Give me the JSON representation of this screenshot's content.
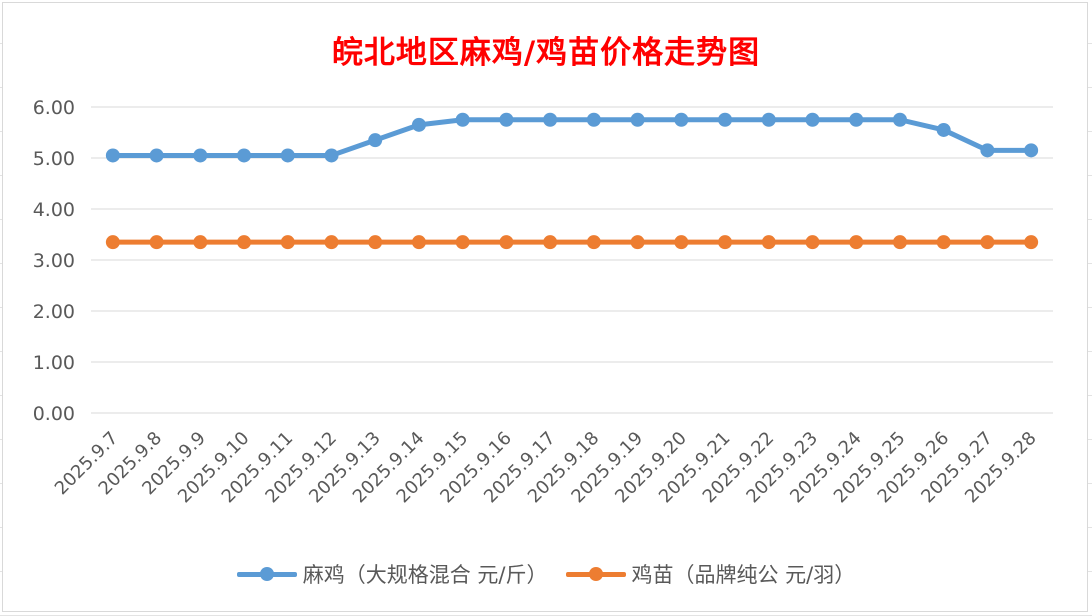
{
  "chart_data": {
    "type": "line",
    "title": "皖北地区麻鸡/鸡苗价格走势图",
    "categories": [
      "2025.9.7",
      "2025.9.8",
      "2025.9.9",
      "2025.9.10",
      "2025.9.11",
      "2025.9.12",
      "2025.9.13",
      "2025.9.14",
      "2025.9.15",
      "2025.9.16",
      "2025.9.17",
      "2025.9.18",
      "2025.9.19",
      "2025.9.20",
      "2025.9.21",
      "2025.9.22",
      "2025.9.23",
      "2025.9.24",
      "2025.9.25",
      "2025.9.26",
      "2025.9.27",
      "2025.9.28"
    ],
    "series": [
      {
        "name": "麻鸡（大规格混合 元/斤）",
        "color": "#5b9bd5",
        "values": [
          5.05,
          5.05,
          5.05,
          5.05,
          5.05,
          5.05,
          5.35,
          5.65,
          5.75,
          5.75,
          5.75,
          5.75,
          5.75,
          5.75,
          5.75,
          5.75,
          5.75,
          5.75,
          5.75,
          5.55,
          5.15,
          5.15
        ]
      },
      {
        "name": "鸡苗（品牌纯公 元/羽）",
        "color": "#ed7d31",
        "values": [
          3.35,
          3.35,
          3.35,
          3.35,
          3.35,
          3.35,
          3.35,
          3.35,
          3.35,
          3.35,
          3.35,
          3.35,
          3.35,
          3.35,
          3.35,
          3.35,
          3.35,
          3.35,
          3.35,
          3.35,
          3.35,
          3.35
        ]
      }
    ],
    "yticks": [
      "0.00",
      "1.00",
      "2.00",
      "3.00",
      "4.00",
      "5.00",
      "6.00"
    ],
    "ylim": [
      0,
      6
    ],
    "xlabel": "",
    "ylabel": "",
    "grid": true,
    "legend_position": "bottom"
  }
}
